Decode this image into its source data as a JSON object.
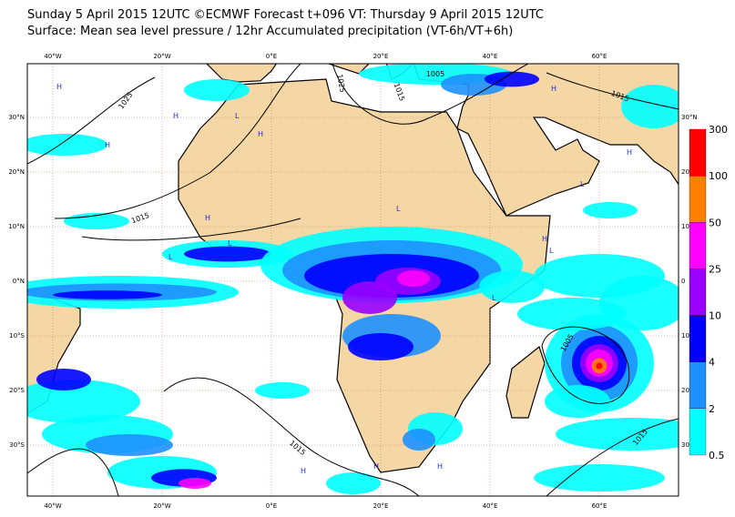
{
  "header": {
    "line1": "Sunday 5 April 2015 12UTC ©ECMWF Forecast t+096 VT: Thursday 9 April 2015 12UTC",
    "line2": "Surface: Mean sea level pressure / 12hr Accumulated precipitation (VT-6h/VT+6h)"
  },
  "map": {
    "lon_labels": [
      "40°W",
      "20°W",
      "0°E",
      "20°E",
      "40°E",
      "60°E"
    ],
    "lat_labels": [
      "30°N",
      "20°N",
      "10°N",
      "0°N",
      "10°S",
      "20°S",
      "30°S"
    ],
    "lat_labels_right": [
      "30°N",
      "20",
      "10",
      "0",
      "10",
      "20",
      "30"
    ],
    "isobar_labels": [
      "1025",
      "1015",
      "1025",
      "1015",
      "1005",
      "1015",
      "1005",
      "1015",
      "1015"
    ],
    "centers": [
      "H",
      "H",
      "H",
      "L",
      "H",
      "H",
      "L",
      "L",
      "L",
      "H",
      "H",
      "L",
      "H",
      "L",
      "H",
      "H",
      "H",
      "L"
    ]
  },
  "colorbar": {
    "levels": [
      "0.5",
      "2",
      "4",
      "10",
      "25",
      "50",
      "100",
      "300"
    ],
    "colors": [
      "#00ffff",
      "#1e90ff",
      "#0000ff",
      "#9900ff",
      "#ff00ff",
      "#ff8000",
      "#ff0000"
    ]
  }
}
